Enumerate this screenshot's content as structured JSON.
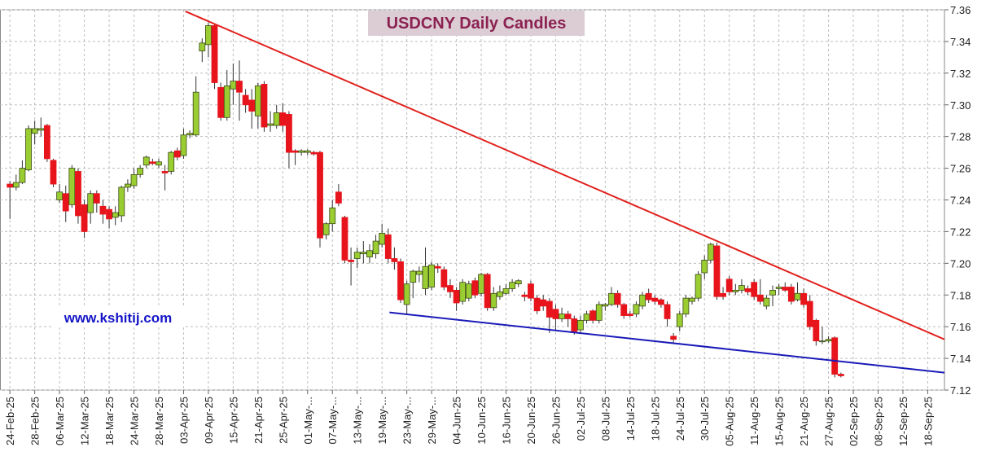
{
  "chart_data": {
    "type": "candlestick",
    "title": "USDCNY Daily Candles",
    "annotation": "www.kshitij.com",
    "up_color": "#9acd32",
    "down_color": "#e8141c",
    "grid": true,
    "ylim": [
      7.12,
      7.36
    ],
    "yticks": [
      7.12,
      7.14,
      7.16,
      7.18,
      {
        "value": 7.2,
        "label": "7.20"
      },
      7.22,
      7.24,
      7.26,
      7.28,
      {
        "value": 7.3,
        "label": "7.30"
      },
      7.32,
      7.34,
      7.36
    ],
    "xlim": [
      -1.6,
      150.7
    ],
    "categories": [
      "24-Feb-25",
      null,
      null,
      null,
      "28-Feb-25",
      null,
      null,
      null,
      "06-Mar-25",
      null,
      null,
      null,
      "12-Mar-25",
      null,
      null,
      null,
      "18-Mar-25",
      null,
      null,
      null,
      "24-Mar-25",
      null,
      null,
      null,
      "28-Mar-25",
      null,
      null,
      null,
      "03-Apr-25",
      null,
      null,
      null,
      "09-Apr-25",
      null,
      null,
      null,
      "15-Apr-25",
      null,
      null,
      null,
      "21-Apr-25",
      null,
      null,
      null,
      "25-Apr-25",
      null,
      null,
      null,
      "01-May-...",
      null,
      null,
      null,
      "07-May-...",
      null,
      null,
      null,
      "13-May-...",
      null,
      null,
      null,
      "19-May-...",
      null,
      null,
      null,
      "23-May-...",
      null,
      null,
      null,
      "29-May-...",
      null,
      null,
      null,
      "04-Jun-25",
      null,
      null,
      null,
      "10-Jun-25",
      null,
      null,
      null,
      "16-Jun-25",
      null,
      null,
      null,
      "20-Jun-25",
      null,
      null,
      null,
      "26-Jun-25",
      null,
      null,
      null,
      "02-Jul-25",
      null,
      null,
      null,
      "08-Jul-25",
      null,
      null,
      null,
      "14-Jul-25",
      null,
      null,
      null,
      "18-Jul-25",
      null,
      null,
      null,
      "24-Jul-25",
      null,
      null,
      null,
      "30-Jul-25",
      null,
      null,
      null,
      "05-Aug-25",
      null,
      null,
      null,
      "11-Aug-25",
      null,
      null,
      null,
      "15-Aug-25",
      null,
      null,
      null,
      "21-Aug-25",
      null,
      null,
      null,
      "27-Aug-25",
      null,
      null,
      null,
      "02-Sep-25",
      null,
      null,
      null,
      "08-Sep-25",
      null,
      null,
      null,
      "12-Sep-25",
      null,
      null,
      null,
      "18-Sep-25"
    ],
    "open": [
      7.25,
      7.248,
      7.251,
      7.259,
      7.282,
      7.284,
      7.287,
      7.265,
      7.24,
      7.244,
      7.237,
      7.258,
      7.237,
      7.232,
      7.244,
      7.236,
      7.234,
      7.229,
      7.23,
      7.248,
      7.249,
      7.256,
      7.262,
      7.264,
      7.262,
      7.258,
      7.258,
      7.271,
      7.268,
      7.281,
      7.281,
      7.334,
      7.338,
      7.35,
      7.311,
      7.292,
      7.31,
      7.315,
      7.306,
      7.303,
      7.293,
      7.313,
      7.287,
      7.287,
      7.295,
      7.294,
      7.271,
      7.27,
      7.27,
      7.27,
      7.27,
      7.218,
      7.225,
      7.245,
      7.229,
      7.202,
      7.203,
      7.206,
      7.204,
      7.206,
      7.212,
      7.218,
      7.203,
      7.201,
      7.174,
      7.188,
      7.193,
      7.184,
      7.185,
      7.198,
      7.196,
      7.186,
      7.183,
      7.176,
      7.178,
      7.189,
      7.181,
      7.193,
      7.172,
      7.179,
      7.181,
      7.184,
      7.187,
      7.18,
      7.187,
      7.178,
      7.177,
      7.176,
      7.171,
      7.165,
      7.168,
      7.165,
      7.158,
      7.164,
      7.17,
      7.164,
      7.173,
      7.174,
      7.181,
      7.174,
      7.168,
      7.168,
      7.173,
      7.181,
      7.178,
      7.177,
      7.174,
      7.154,
      7.16,
      7.168,
      7.176,
      7.178,
      7.194,
      7.202,
      7.211,
      7.181,
      7.19,
      7.182,
      7.183,
      7.184,
      7.188,
      7.18,
      7.173,
      7.18,
      7.184,
      7.185,
      7.185,
      7.177,
      7.181,
      7.176,
      7.164,
      7.151,
      7.151,
      7.153,
      7.13,
      null,
      null,
      null,
      null,
      null,
      null,
      null,
      null,
      null,
      null,
      null,
      null,
      null,
      null
    ],
    "high": [
      7.252,
      7.256,
      7.265,
      7.287,
      7.29,
      7.292,
      7.288,
      7.266,
      7.25,
      7.249,
      7.262,
      7.26,
      7.24,
      7.246,
      7.246,
      7.24,
      7.236,
      7.236,
      7.249,
      7.253,
      7.26,
      7.262,
      7.268,
      7.266,
      7.266,
      7.262,
      7.271,
      7.273,
      7.285,
      7.284,
      7.318,
      7.342,
      7.352,
      7.351,
      7.314,
      7.322,
      7.326,
      7.328,
      7.31,
      7.31,
      7.314,
      7.315,
      7.296,
      7.3,
      7.301,
      7.296,
      7.272,
      7.272,
      7.272,
      7.271,
      7.271,
      7.226,
      7.24,
      7.25,
      7.23,
      7.21,
      7.21,
      7.214,
      7.212,
      7.218,
      7.225,
      7.222,
      7.21,
      7.203,
      7.189,
      7.196,
      7.198,
      7.21,
      7.201,
      7.2,
      7.198,
      7.19,
      7.185,
      7.19,
      7.189,
      7.191,
      7.194,
      7.194,
      7.185,
      7.186,
      7.187,
      7.19,
      7.19,
      7.182,
      7.189,
      7.18,
      7.18,
      7.178,
      7.174,
      7.172,
      7.17,
      7.167,
      7.167,
      7.17,
      7.171,
      7.176,
      7.175,
      7.185,
      7.183,
      7.175,
      7.17,
      7.176,
      7.182,
      7.184,
      7.18,
      7.178,
      7.176,
      7.156,
      7.17,
      7.18,
      7.179,
      7.195,
      7.205,
      7.213,
      7.213,
      7.185,
      7.192,
      7.187,
      7.19,
      7.186,
      7.19,
      7.19,
      7.18,
      7.186,
      7.187,
      7.188,
      7.187,
      7.188,
      7.184,
      7.18,
      7.165,
      7.16,
      7.154,
      7.154,
      7.131,
      null,
      null,
      null,
      null,
      null,
      null,
      null,
      null,
      null,
      null,
      null,
      null,
      null,
      null
    ],
    "low": [
      7.228,
      7.246,
      7.25,
      7.258,
      7.275,
      7.28,
      7.264,
      7.248,
      7.238,
      7.226,
      7.235,
      7.225,
      7.216,
      7.225,
      7.232,
      7.225,
      7.222,
      7.224,
      7.226,
      7.245,
      7.247,
      7.254,
      7.26,
      7.262,
      7.26,
      7.246,
      7.256,
      7.265,
      7.266,
      7.279,
      7.28,
      7.327,
      7.33,
      7.31,
      7.29,
      7.29,
      7.3,
      7.29,
      7.295,
      7.285,
      7.285,
      7.283,
      7.283,
      7.285,
      7.283,
      7.26,
      7.262,
      7.268,
      7.268,
      7.268,
      7.21,
      7.215,
      7.22,
      7.236,
      7.2,
      7.186,
      7.197,
      7.2,
      7.2,
      7.203,
      7.21,
      7.2,
      7.196,
      7.175,
      7.168,
      7.178,
      7.188,
      7.18,
      7.183,
      7.194,
      7.183,
      7.178,
      7.17,
      7.174,
      7.176,
      7.178,
      7.179,
      7.17,
      7.17,
      7.177,
      7.18,
      7.182,
      7.185,
      7.176,
      7.176,
      7.168,
      7.17,
      7.156,
      7.158,
      7.163,
      7.16,
      7.155,
      7.156,
      7.162,
      7.162,
      7.162,
      7.17,
      7.173,
      7.172,
      7.165,
      7.166,
      7.166,
      7.171,
      7.175,
      7.174,
      7.172,
      7.16,
      7.149,
      7.157,
      7.166,
      7.174,
      7.176,
      7.19,
      7.2,
      7.177,
      7.177,
      7.18,
      7.18,
      7.181,
      7.18,
      7.177,
      7.174,
      7.171,
      7.173,
      7.18,
      7.182,
      7.174,
      7.176,
      7.172,
      7.158,
      7.148,
      7.149,
      7.15,
      7.128,
      7.128,
      null,
      null,
      null,
      null,
      null,
      null,
      null,
      null,
      null,
      null,
      null,
      null,
      null,
      null
    ],
    "close": [
      7.248,
      7.251,
      7.26,
      7.285,
      7.285,
      7.285,
      7.266,
      7.25,
      7.245,
      7.233,
      7.26,
      7.23,
      7.22,
      7.244,
      7.238,
      7.231,
      7.228,
      7.232,
      7.248,
      7.25,
      7.256,
      7.26,
      7.267,
      7.263,
      7.264,
      7.257,
      7.27,
      7.267,
      7.281,
      7.282,
      7.308,
      7.339,
      7.35,
      7.314,
      7.292,
      7.312,
      7.315,
      7.308,
      7.3,
      7.296,
      7.312,
      7.286,
      7.288,
      7.295,
      7.287,
      7.27,
      7.27,
      7.271,
      7.271,
      7.269,
      7.216,
      7.225,
      7.235,
      7.238,
      7.202,
      7.201,
      7.207,
      7.207,
      7.208,
      7.214,
      7.219,
      7.203,
      7.201,
      7.177,
      7.187,
      7.195,
      7.195,
      7.198,
      7.199,
      7.197,
      7.185,
      7.182,
      7.175,
      7.188,
      7.187,
      7.18,
      7.193,
      7.172,
      7.181,
      7.182,
      7.184,
      7.188,
      7.189,
      7.179,
      7.178,
      7.17,
      7.173,
      7.166,
      7.165,
      7.168,
      7.165,
      7.157,
      7.164,
      7.168,
      7.164,
      7.174,
      7.174,
      7.181,
      7.174,
      7.167,
      7.167,
      7.174,
      7.18,
      7.177,
      7.176,
      7.174,
      7.165,
      7.152,
      7.168,
      7.178,
      7.178,
      7.193,
      7.202,
      7.212,
      7.179,
      7.179,
      7.182,
      7.183,
      7.186,
      7.182,
      7.179,
      7.176,
      7.178,
      7.183,
      7.185,
      7.183,
      7.176,
      7.181,
      7.174,
      7.16,
      7.151,
      7.151,
      7.152,
      7.13,
      7.129,
      null,
      null,
      null,
      null,
      null,
      null,
      null,
      null,
      null,
      null,
      null,
      null,
      null,
      null
    ],
    "lines": [
      {
        "color": "#e0201c",
        "x": [
          28.3,
          150.7
        ],
        "y": [
          7.359,
          7.152
        ]
      },
      {
        "color": "#1a1ab8",
        "x": [
          61.2,
          150.7
        ],
        "y": [
          7.169,
          7.131
        ]
      }
    ]
  }
}
